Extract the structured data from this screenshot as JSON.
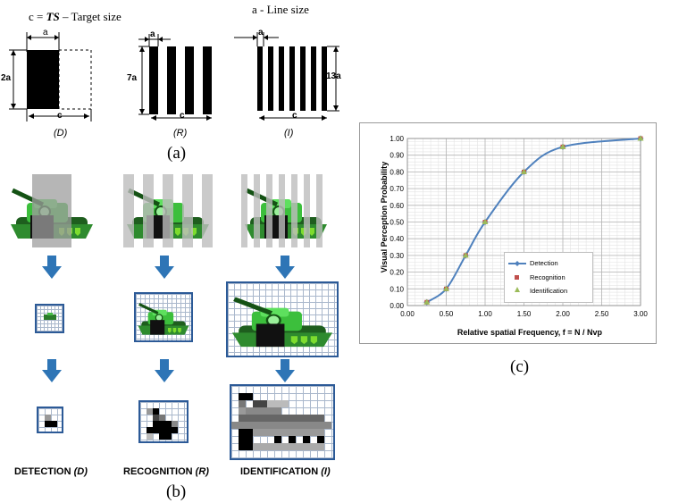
{
  "figure_a": {
    "header_left": "c = TS – Target size",
    "header_left_prefix": "c = ",
    "header_left_ts": "TS",
    "header_left_suffix": " – Target size",
    "header_right": "a - Line size",
    "panels": [
      {
        "id": "D",
        "label": "(D)",
        "height_label": "2a",
        "width_label": "c",
        "line_label": "a"
      },
      {
        "id": "R",
        "label": "(R)",
        "height_label": "7a",
        "width_label": "c",
        "line_label": "a"
      },
      {
        "id": "I",
        "label": "(I)",
        "height_label": "13a",
        "width_label": "c",
        "line_label": "a"
      }
    ],
    "caption": "(a)"
  },
  "figure_b": {
    "caption": "(b)",
    "columns": [
      {
        "name_main": "DETECTION ",
        "name_italic": "(D)"
      },
      {
        "name_main": "RECOGNITION ",
        "name_italic": "(R)"
      },
      {
        "name_main": "IDENTIFICATION ",
        "name_italic": "(I)"
      }
    ]
  },
  "figure_c": {
    "caption": "(c)"
  },
  "chart_data": {
    "type": "line",
    "xlabel": "Relative spatial Frequency, f = N / Nvp",
    "ylabel": "Visual Perception Probability",
    "xlim": [
      0,
      3
    ],
    "ylim": [
      0,
      1
    ],
    "x_ticks": [
      "0.00",
      "0.50",
      "1.00",
      "1.50",
      "2.00",
      "2.50",
      "3.00"
    ],
    "y_ticks": [
      "0.00",
      "0.10",
      "0.20",
      "0.30",
      "0.40",
      "0.50",
      "0.60",
      "0.70",
      "0.80",
      "0.90",
      "1.00"
    ],
    "grid": true,
    "legend_position": "bottom-right",
    "series": [
      {
        "name": "Detection",
        "color": "#4f81bd",
        "marker": "diamond",
        "x": [
          0.25,
          0.5,
          0.75,
          1.0,
          1.5,
          2.0,
          3.0
        ],
        "y": [
          0.02,
          0.1,
          0.3,
          0.5,
          0.8,
          0.95,
          1.0
        ]
      },
      {
        "name": "Recognition",
        "color": "#c0504d",
        "marker": "square",
        "x": [
          0.25,
          0.5,
          0.75,
          1.0,
          1.5,
          2.0,
          3.0
        ],
        "y": [
          0.02,
          0.1,
          0.3,
          0.5,
          0.8,
          0.95,
          1.0
        ]
      },
      {
        "name": "Identification",
        "color": "#9bbb59",
        "marker": "triangle",
        "x": [
          0.25,
          0.5,
          0.75,
          1.0,
          1.5,
          2.0,
          3.0
        ],
        "y": [
          0.02,
          0.1,
          0.3,
          0.5,
          0.8,
          0.95,
          1.0
        ]
      }
    ]
  }
}
